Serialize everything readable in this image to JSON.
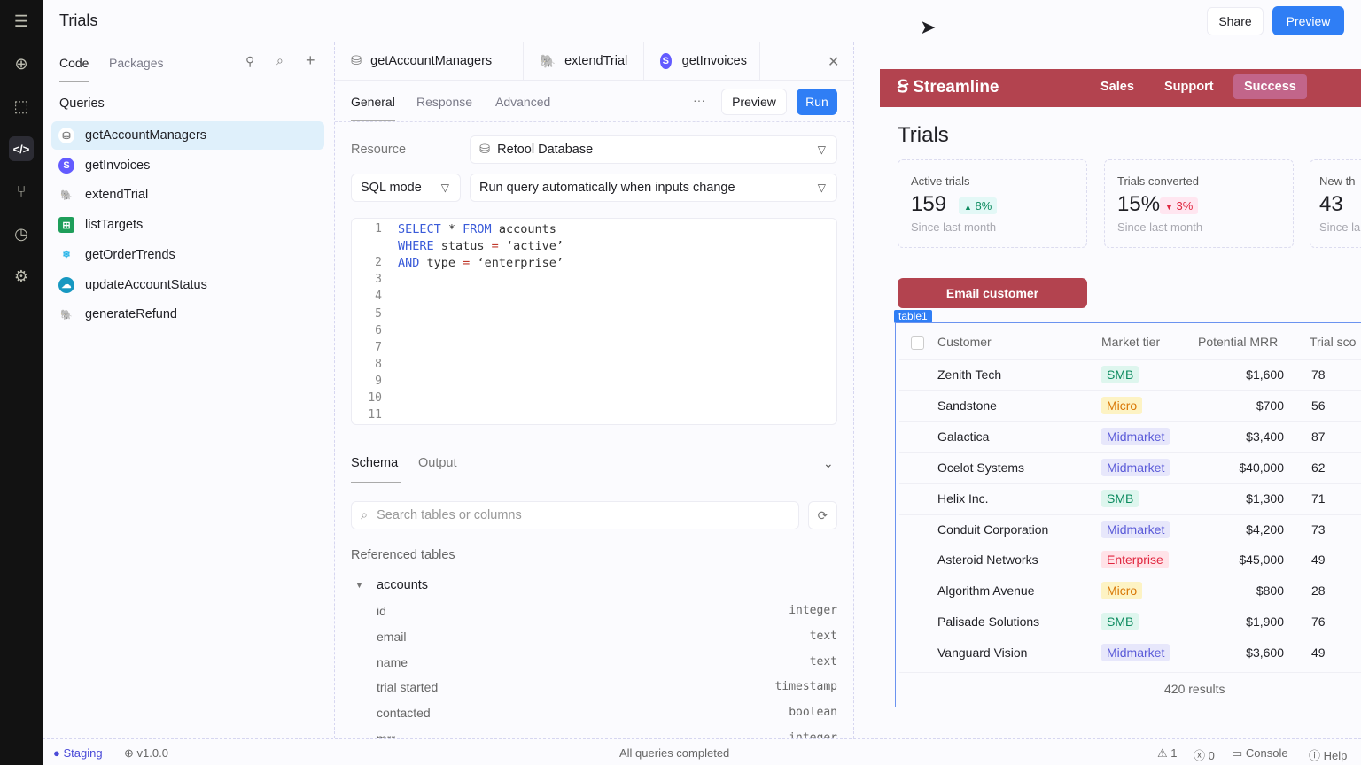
{
  "header": {
    "title": "Trials",
    "share": "Share",
    "preview": "Preview"
  },
  "rail": [
    "logo-icon",
    "add-icon",
    "canvas-icon",
    "code-icon",
    "branch-icon",
    "history-icon",
    "settings-icon"
  ],
  "left": {
    "tabs": [
      "Code",
      "Packages"
    ],
    "section": "Queries",
    "queries": [
      {
        "label": "getAccountManagers",
        "icon": "database-icon"
      },
      {
        "label": "getInvoices",
        "icon": "stripe-icon"
      },
      {
        "label": "extendTrial",
        "icon": "postgres-icon"
      },
      {
        "label": "listTargets",
        "icon": "sheets-icon"
      },
      {
        "label": "getOrderTrends",
        "icon": "snowflake-icon"
      },
      {
        "label": "updateAccountStatus",
        "icon": "salesforce-icon"
      },
      {
        "label": "generateRefund",
        "icon": "postgres-icon"
      }
    ]
  },
  "editor": {
    "query_tabs": [
      "getAccountManagers",
      "extendTrial",
      "getInvoices"
    ],
    "sub_tabs": [
      "General",
      "Response",
      "Advanced"
    ],
    "preview": "Preview",
    "run": "Run",
    "resource_label": "Resource",
    "resource": "Retool Database",
    "mode": "SQL mode",
    "trigger": "Run query automatically when inputs change",
    "line_numbers": [
      "1",
      "",
      "2",
      "3",
      "4",
      "5",
      "6",
      "7",
      "8",
      "9",
      "10",
      "11"
    ],
    "code": [
      [
        "SELECT",
        " * ",
        "FROM",
        " accounts"
      ],
      [
        "WHERE",
        " status ",
        "=",
        " ‘active’"
      ],
      [
        "AND",
        " type ",
        "=",
        " ‘enterprise’"
      ]
    ],
    "schema_tabs": [
      "Schema",
      "Output"
    ],
    "search_placeholder": "Search tables or columns",
    "referenced": "Referenced tables",
    "table": "accounts",
    "columns": [
      [
        "id",
        "integer"
      ],
      [
        "email",
        "text"
      ],
      [
        "name",
        "text"
      ],
      [
        "trial started",
        "timestamp"
      ],
      [
        "contacted",
        "boolean"
      ],
      [
        "mrr",
        "integer"
      ]
    ]
  },
  "app": {
    "brand": "Streamline",
    "nav": [
      "Sales",
      "Support",
      "Success"
    ],
    "title": "Trials",
    "stats": [
      {
        "label": "Active trials",
        "value": "159",
        "delta": "8%",
        "dir": "up",
        "sub": "Since last month"
      },
      {
        "label": "Trials converted",
        "value": "15%",
        "delta": "3%",
        "dir": "down",
        "sub": "Since last month"
      },
      {
        "label": "New th",
        "value": "43",
        "sub": "Since la"
      }
    ],
    "email_button": "Email customer",
    "table_tag": "table1",
    "columns": [
      "Customer",
      "Market tier",
      "Potential MRR",
      "Trial sco"
    ],
    "rows": [
      [
        "Zenith Tech",
        "SMB",
        "$1,600",
        "78"
      ],
      [
        "Sandstone",
        "Micro",
        "$700",
        "56"
      ],
      [
        "Galactica",
        "Midmarket",
        "$3,400",
        "87"
      ],
      [
        "Ocelot Systems",
        "Midmarket",
        "$40,000",
        "62"
      ],
      [
        "Helix Inc.",
        "SMB",
        "$1,300",
        "71"
      ],
      [
        "Conduit Corporation",
        "Midmarket",
        "$4,200",
        "73"
      ],
      [
        "Asteroid Networks",
        "Enterprise",
        "$45,000",
        "49"
      ],
      [
        "Algorithm Avenue",
        "Micro",
        "$800",
        "28"
      ],
      [
        "Palisade Solutions",
        "SMB",
        "$1,900",
        "76"
      ],
      [
        "Vanguard Vision",
        "Midmarket",
        "$3,600",
        "49"
      ]
    ],
    "results": "420 results",
    "tier_colors": {
      "SMB": [
        "#0b8a5e",
        "#def6ee"
      ],
      "Micro": [
        "#d97706",
        "#fdf3c4"
      ],
      "Midmarket": [
        "#5a5ad8",
        "#e7e7fb"
      ],
      "Enterprise": [
        "#e0263f",
        "#ffe3e8"
      ]
    },
    "brand_color": "#b3434f"
  },
  "status": {
    "env": "Staging",
    "version": "v1.0.0",
    "center": "All queries completed",
    "warnings": "1",
    "errors": "0",
    "console": "Console",
    "help": "Help"
  }
}
